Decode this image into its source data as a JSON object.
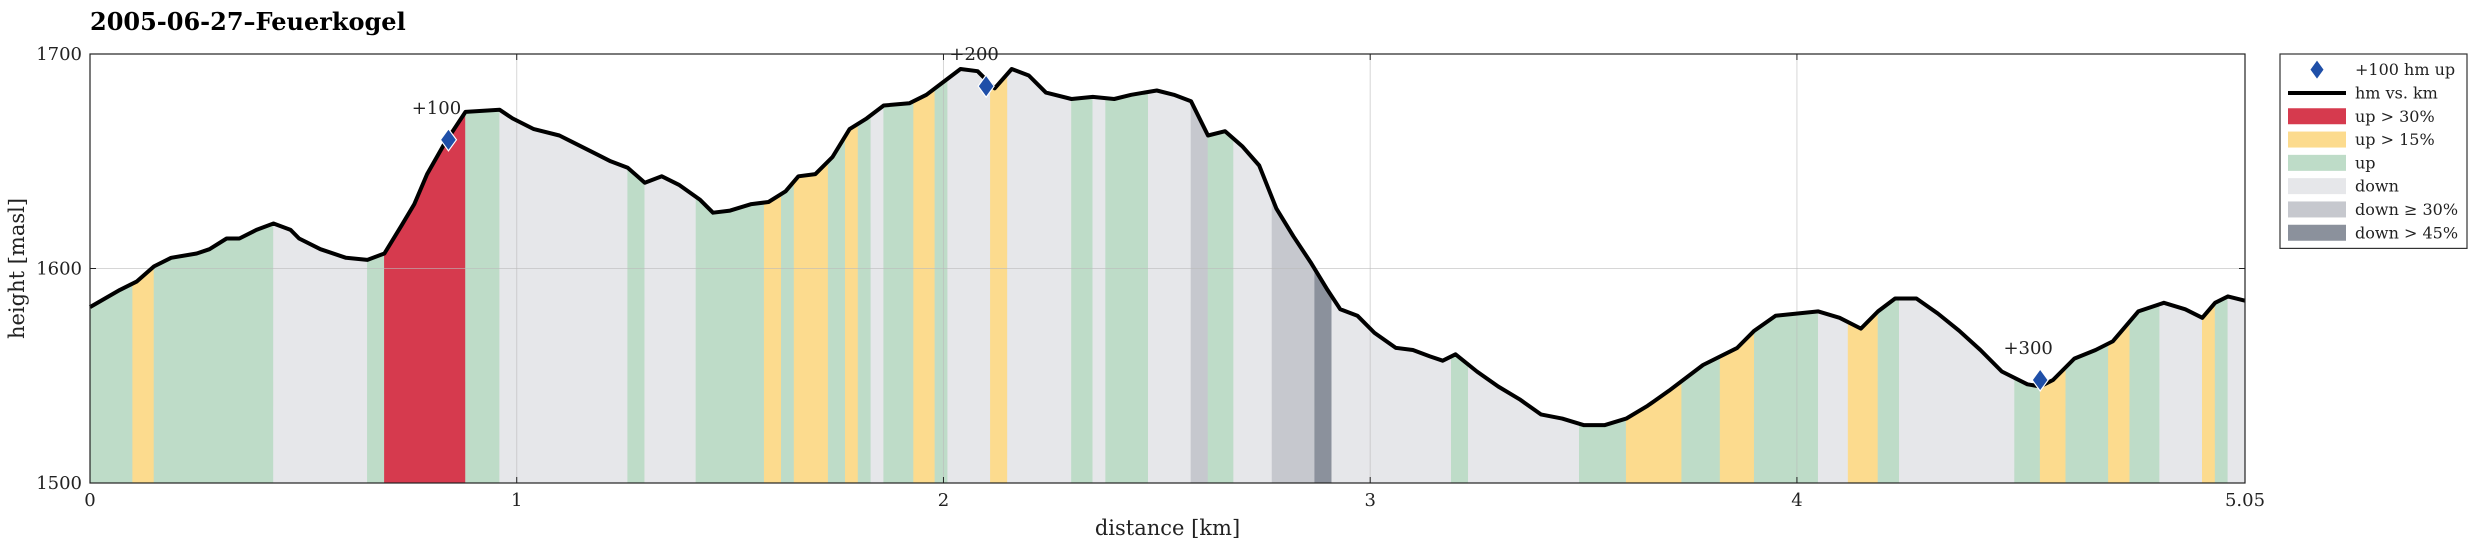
{
  "chart_data": {
    "type": "area",
    "title": "2005-06-27–Feuerkogel",
    "xlabel": "distance [km]",
    "ylabel": "height [masl]",
    "xlim": [
      0,
      5.05
    ],
    "ylim": [
      1500,
      1700
    ],
    "xticks": [
      0,
      1,
      2,
      3,
      4,
      5.05
    ],
    "xtick_labels": [
      "0",
      "1",
      "2",
      "3",
      "4",
      "5.05"
    ],
    "yticks": [
      1500,
      1600,
      1700
    ],
    "ytick_labels": [
      "1500",
      "1600",
      "1700"
    ],
    "grid": true,
    "legend_position": "outside-right-top",
    "colors": {
      "profile": "#000000",
      "marker": "#1f4fa8",
      "up30": "#d63a4e",
      "up15": "#fcdb8e",
      "up": "#bedcc8",
      "down": "#e6e7ea",
      "down30": "#c6c8ce",
      "down45": "#8b919c"
    },
    "legend": [
      {
        "key": "marker",
        "label": "+100 hm up"
      },
      {
        "key": "line",
        "label": "hm vs. km"
      },
      {
        "key": "up30",
        "label": "up > 30%"
      },
      {
        "key": "up15",
        "label": "up > 15%"
      },
      {
        "key": "up",
        "label": "up"
      },
      {
        "key": "down",
        "label": "down"
      },
      {
        "key": "down30",
        "label": "down ≥ 30%"
      },
      {
        "key": "down45",
        "label": "down > 45%"
      }
    ],
    "profile": [
      [
        0.0,
        1582
      ],
      [
        0.07,
        1590
      ],
      [
        0.11,
        1594
      ],
      [
        0.15,
        1601
      ],
      [
        0.19,
        1605
      ],
      [
        0.25,
        1607
      ],
      [
        0.28,
        1609
      ],
      [
        0.32,
        1614
      ],
      [
        0.35,
        1614
      ],
      [
        0.39,
        1618
      ],
      [
        0.43,
        1621
      ],
      [
        0.47,
        1618
      ],
      [
        0.49,
        1614
      ],
      [
        0.54,
        1609
      ],
      [
        0.6,
        1605
      ],
      [
        0.65,
        1604
      ],
      [
        0.69,
        1607
      ],
      [
        0.73,
        1620
      ],
      [
        0.76,
        1630
      ],
      [
        0.79,
        1644
      ],
      [
        0.83,
        1658
      ],
      [
        0.88,
        1673
      ],
      [
        0.96,
        1674
      ],
      [
        0.99,
        1670
      ],
      [
        1.04,
        1665
      ],
      [
        1.1,
        1662
      ],
      [
        1.13,
        1659
      ],
      [
        1.19,
        1653
      ],
      [
        1.22,
        1650
      ],
      [
        1.26,
        1647
      ],
      [
        1.3,
        1640
      ],
      [
        1.34,
        1643
      ],
      [
        1.38,
        1639
      ],
      [
        1.43,
        1632
      ],
      [
        1.46,
        1626
      ],
      [
        1.5,
        1627
      ],
      [
        1.55,
        1630
      ],
      [
        1.59,
        1631
      ],
      [
        1.63,
        1636
      ],
      [
        1.66,
        1643
      ],
      [
        1.7,
        1644
      ],
      [
        1.74,
        1652
      ],
      [
        1.78,
        1665
      ],
      [
        1.82,
        1670
      ],
      [
        1.86,
        1676
      ],
      [
        1.92,
        1677
      ],
      [
        1.96,
        1681
      ],
      [
        2.0,
        1687
      ],
      [
        2.04,
        1693
      ],
      [
        2.08,
        1692
      ],
      [
        2.12,
        1684
      ],
      [
        2.16,
        1693
      ],
      [
        2.2,
        1690
      ],
      [
        2.24,
        1682
      ],
      [
        2.3,
        1679
      ],
      [
        2.35,
        1680
      ],
      [
        2.4,
        1679
      ],
      [
        2.44,
        1681
      ],
      [
        2.5,
        1683
      ],
      [
        2.54,
        1681
      ],
      [
        2.58,
        1678
      ],
      [
        2.62,
        1662
      ],
      [
        2.66,
        1664
      ],
      [
        2.7,
        1657
      ],
      [
        2.74,
        1648
      ],
      [
        2.78,
        1628
      ],
      [
        2.82,
        1615
      ],
      [
        2.86,
        1603
      ],
      [
        2.9,
        1590
      ],
      [
        2.93,
        1581
      ],
      [
        2.97,
        1578
      ],
      [
        3.01,
        1570
      ],
      [
        3.06,
        1563
      ],
      [
        3.1,
        1562
      ],
      [
        3.14,
        1559
      ],
      [
        3.17,
        1557
      ],
      [
        3.2,
        1560
      ],
      [
        3.25,
        1552
      ],
      [
        3.3,
        1545
      ],
      [
        3.35,
        1539
      ],
      [
        3.4,
        1532
      ],
      [
        3.45,
        1530
      ],
      [
        3.5,
        1527
      ],
      [
        3.55,
        1527
      ],
      [
        3.6,
        1530
      ],
      [
        3.65,
        1536
      ],
      [
        3.7,
        1543
      ],
      [
        3.78,
        1555
      ],
      [
        3.86,
        1563
      ],
      [
        3.9,
        1571
      ],
      [
        3.95,
        1578
      ],
      [
        4.05,
        1580
      ],
      [
        4.1,
        1577
      ],
      [
        4.15,
        1572
      ],
      [
        4.19,
        1580
      ],
      [
        4.23,
        1586
      ],
      [
        4.28,
        1586
      ],
      [
        4.33,
        1579
      ],
      [
        4.38,
        1571
      ],
      [
        4.43,
        1562
      ],
      [
        4.48,
        1552
      ],
      [
        4.54,
        1546
      ],
      [
        4.57,
        1545
      ],
      [
        4.6,
        1548
      ],
      [
        4.65,
        1558
      ],
      [
        4.7,
        1562
      ],
      [
        4.74,
        1566
      ],
      [
        4.8,
        1580
      ],
      [
        4.86,
        1584
      ],
      [
        4.91,
        1581
      ],
      [
        4.95,
        1577
      ],
      [
        4.98,
        1584
      ],
      [
        5.01,
        1587
      ],
      [
        5.05,
        1585
      ]
    ],
    "segments": [
      {
        "from": 0.0,
        "to": 0.1,
        "cls": "up"
      },
      {
        "from": 0.1,
        "to": 0.15,
        "cls": "up15"
      },
      {
        "from": 0.15,
        "to": 0.43,
        "cls": "up"
      },
      {
        "from": 0.43,
        "to": 0.65,
        "cls": "down"
      },
      {
        "from": 0.65,
        "to": 0.69,
        "cls": "up"
      },
      {
        "from": 0.69,
        "to": 0.88,
        "cls": "up30"
      },
      {
        "from": 0.88,
        "to": 0.96,
        "cls": "up"
      },
      {
        "from": 0.96,
        "to": 1.26,
        "cls": "down"
      },
      {
        "from": 1.26,
        "to": 1.3,
        "cls": "up"
      },
      {
        "from": 1.3,
        "to": 1.42,
        "cls": "down"
      },
      {
        "from": 1.42,
        "to": 1.58,
        "cls": "up"
      },
      {
        "from": 1.58,
        "to": 1.62,
        "cls": "up15"
      },
      {
        "from": 1.62,
        "to": 1.65,
        "cls": "up"
      },
      {
        "from": 1.65,
        "to": 1.73,
        "cls": "up15"
      },
      {
        "from": 1.73,
        "to": 1.77,
        "cls": "up"
      },
      {
        "from": 1.77,
        "to": 1.8,
        "cls": "up15"
      },
      {
        "from": 1.8,
        "to": 1.83,
        "cls": "up"
      },
      {
        "from": 1.83,
        "to": 1.86,
        "cls": "down"
      },
      {
        "from": 1.86,
        "to": 1.93,
        "cls": "up"
      },
      {
        "from": 1.93,
        "to": 1.98,
        "cls": "up15"
      },
      {
        "from": 1.98,
        "to": 2.01,
        "cls": "up"
      },
      {
        "from": 2.01,
        "to": 2.11,
        "cls": "down"
      },
      {
        "from": 2.11,
        "to": 2.15,
        "cls": "up15"
      },
      {
        "from": 2.15,
        "to": 2.3,
        "cls": "down"
      },
      {
        "from": 2.3,
        "to": 2.35,
        "cls": "up"
      },
      {
        "from": 2.35,
        "to": 2.38,
        "cls": "down"
      },
      {
        "from": 2.38,
        "to": 2.48,
        "cls": "up"
      },
      {
        "from": 2.48,
        "to": 2.58,
        "cls": "down"
      },
      {
        "from": 2.58,
        "to": 2.62,
        "cls": "down30"
      },
      {
        "from": 2.62,
        "to": 2.68,
        "cls": "up"
      },
      {
        "from": 2.68,
        "to": 2.77,
        "cls": "down"
      },
      {
        "from": 2.77,
        "to": 2.87,
        "cls": "down30"
      },
      {
        "from": 2.87,
        "to": 2.91,
        "cls": "down45"
      },
      {
        "from": 2.91,
        "to": 3.19,
        "cls": "down"
      },
      {
        "from": 3.19,
        "to": 3.23,
        "cls": "up"
      },
      {
        "from": 3.23,
        "to": 3.49,
        "cls": "down"
      },
      {
        "from": 3.49,
        "to": 3.6,
        "cls": "up"
      },
      {
        "from": 3.6,
        "to": 3.73,
        "cls": "up15"
      },
      {
        "from": 3.73,
        "to": 3.82,
        "cls": "up"
      },
      {
        "from": 3.82,
        "to": 3.9,
        "cls": "up15"
      },
      {
        "from": 3.9,
        "to": 4.05,
        "cls": "up"
      },
      {
        "from": 4.05,
        "to": 4.12,
        "cls": "down"
      },
      {
        "from": 4.12,
        "to": 4.19,
        "cls": "up15"
      },
      {
        "from": 4.19,
        "to": 4.24,
        "cls": "up"
      },
      {
        "from": 4.24,
        "to": 4.51,
        "cls": "down"
      },
      {
        "from": 4.51,
        "to": 4.57,
        "cls": "up"
      },
      {
        "from": 4.57,
        "to": 4.63,
        "cls": "up15"
      },
      {
        "from": 4.63,
        "to": 4.73,
        "cls": "up"
      },
      {
        "from": 4.73,
        "to": 4.78,
        "cls": "up15"
      },
      {
        "from": 4.78,
        "to": 4.85,
        "cls": "up"
      },
      {
        "from": 4.85,
        "to": 4.95,
        "cls": "down"
      },
      {
        "from": 4.95,
        "to": 4.98,
        "cls": "up15"
      },
      {
        "from": 4.98,
        "to": 5.01,
        "cls": "up"
      },
      {
        "from": 5.01,
        "to": 5.05,
        "cls": "down"
      }
    ],
    "markers": [
      {
        "x": 0.84,
        "y": 1660,
        "label": "+100"
      },
      {
        "x": 2.1,
        "y": 1685,
        "label": "+200"
      },
      {
        "x": 4.57,
        "y": 1548,
        "label": "+300"
      }
    ]
  }
}
